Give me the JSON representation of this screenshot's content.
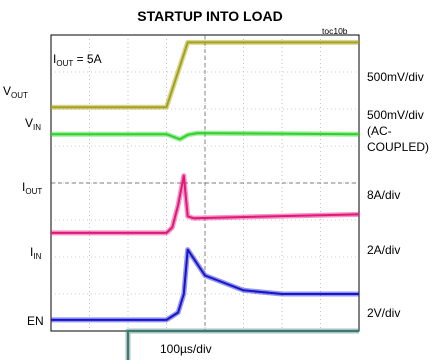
{
  "header": {
    "title": "STARTUP INTO LOAD",
    "figure_id": "toc10b"
  },
  "annotation": {
    "prefix": "I",
    "sub": "OUT",
    "suffix": " = 5A"
  },
  "left_labels": [
    {
      "main": "V",
      "sub": "OUT"
    },
    {
      "main": "V",
      "sub": "IN"
    },
    {
      "main": "I",
      "sub": "OUT"
    },
    {
      "main": "I",
      "sub": "IN"
    },
    {
      "main": "EN",
      "sub": ""
    }
  ],
  "right_labels": {
    "vout_scale": "500mV/div",
    "vin_scale": "500mV/div",
    "vin_note_1": "(AC-",
    "vin_note_2": "COUPLED)",
    "iout_scale": "8A/div",
    "iin_scale": "2A/div",
    "en_scale": "2V/div"
  },
  "chart_data": {
    "type": "line",
    "title": "STARTUP INTO LOAD",
    "xlabel": "100µs/div",
    "grid": true,
    "divisions": {
      "x": 8,
      "y": 8
    },
    "x_range_div": [
      0,
      8
    ],
    "series": [
      {
        "name": "VOUT",
        "scale": "500mV/div",
        "color": "#a6a117",
        "x": [
          0,
          3.0,
          3.55,
          3.75,
          8
        ],
        "y": [
          2.05,
          2.05,
          3.8,
          3.8,
          3.8
        ]
      },
      {
        "name": "VIN",
        "scale": "500mV/div",
        "color": "#2fd22b",
        "x": [
          0,
          3.0,
          3.35,
          3.55,
          3.8,
          8
        ],
        "y": [
          1.32,
          1.32,
          1.18,
          1.3,
          1.35,
          1.32
        ]
      },
      {
        "name": "IOUT",
        "scale": "8A/div",
        "color": "#e1177b",
        "x": [
          0,
          3.0,
          3.15,
          3.3,
          3.45,
          3.55,
          3.7,
          8
        ],
        "y": [
          -1.35,
          -1.35,
          -1.2,
          -0.6,
          0.2,
          -0.9,
          -0.95,
          -0.85
        ]
      },
      {
        "name": "IIN",
        "scale": "2A/div",
        "color": "#1515cc",
        "x": [
          0,
          3.0,
          3.3,
          3.45,
          3.55,
          4.0,
          5.0,
          6.0,
          8
        ],
        "y": [
          -3.7,
          -3.7,
          -3.5,
          -3.0,
          -1.8,
          -2.5,
          -2.9,
          -3.0,
          -3.0
        ]
      },
      {
        "name": "EN",
        "scale": "2V/div",
        "color": "#3a7a72",
        "x": [
          0,
          2.0,
          2.0,
          8
        ],
        "y": [
          -4.9,
          -4.9,
          -4.0,
          -4.0
        ]
      }
    ]
  }
}
